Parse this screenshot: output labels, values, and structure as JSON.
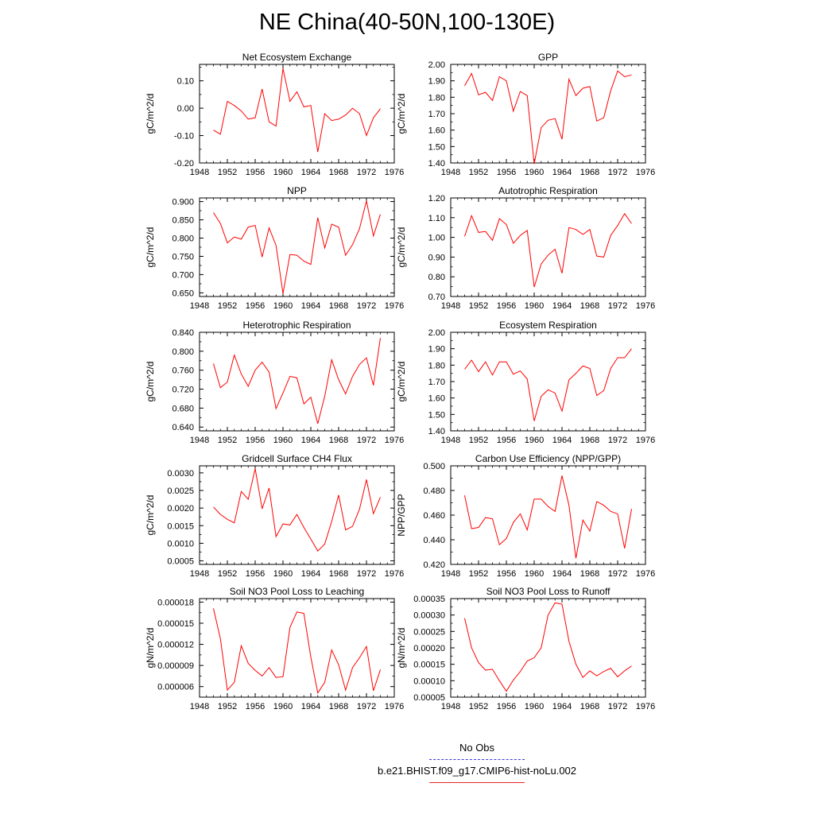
{
  "page_title": "NE China(40-50N,100-130E)",
  "legend": {
    "obs_label": "No Obs",
    "obs_color": "#3a3ad6",
    "case_label": "b.e21.BHIST.f09_g17.CMIP6-hist-noLu.002",
    "case_color": "#e8242a"
  },
  "chart_data": [
    {
      "type": "line",
      "title": "Net Ecosystem Exchange",
      "ylabel": "gC/m^2/d",
      "xlim": [
        1948,
        1976
      ],
      "xticks": [
        "1948",
        "1952",
        "1956",
        "1960",
        "1964",
        "1968",
        "1972",
        "1976"
      ],
      "ylim": [
        -0.2,
        0.16
      ],
      "yticks": [
        "-0.20",
        "-0.10",
        "0.00",
        "0.10"
      ],
      "ytick_values": [
        -0.2,
        -0.1,
        0.0,
        0.1
      ],
      "series": [
        {
          "color": "#ff0000",
          "x": [
            1950,
            1951,
            1952,
            1953,
            1954,
            1955,
            1956,
            1957,
            1958,
            1959,
            1960,
            1961,
            1962,
            1963,
            1964,
            1965,
            1966,
            1967,
            1968,
            1969,
            1970,
            1971,
            1972,
            1973,
            1974
          ],
          "y": [
            -0.08,
            -0.095,
            0.025,
            0.01,
            -0.01,
            -0.04,
            -0.035,
            0.07,
            -0.05,
            -0.065,
            0.145,
            0.025,
            0.06,
            0.005,
            0.01,
            -0.16,
            -0.02,
            -0.045,
            -0.04,
            -0.025,
            0.0,
            -0.02,
            -0.1,
            -0.035,
            -0.002
          ]
        }
      ]
    },
    {
      "type": "line",
      "title": "GPP",
      "ylabel": "gC/m^2/d",
      "xlim": [
        1948,
        1976
      ],
      "xticks": [
        "1948",
        "1952",
        "1956",
        "1960",
        "1964",
        "1968",
        "1972",
        "1976"
      ],
      "ylim": [
        1.4,
        2.0
      ],
      "yticks": [
        "1.40",
        "1.50",
        "1.60",
        "1.70",
        "1.80",
        "1.90",
        "2.00"
      ],
      "ytick_values": [
        1.4,
        1.5,
        1.6,
        1.7,
        1.8,
        1.9,
        2.0
      ],
      "series": [
        {
          "color": "#ff0000",
          "x": [
            1950,
            1951,
            1952,
            1953,
            1954,
            1955,
            1956,
            1957,
            1958,
            1959,
            1960,
            1961,
            1962,
            1963,
            1964,
            1965,
            1966,
            1967,
            1968,
            1969,
            1970,
            1971,
            1972,
            1973,
            1974
          ],
          "y": [
            1.87,
            1.945,
            1.815,
            1.83,
            1.78,
            1.925,
            1.9,
            1.715,
            1.835,
            1.81,
            1.395,
            1.615,
            1.66,
            1.67,
            1.545,
            1.91,
            1.81,
            1.855,
            1.865,
            1.655,
            1.675,
            1.84,
            1.96,
            1.925,
            1.935
          ]
        }
      ]
    },
    {
      "type": "line",
      "title": "NPP",
      "ylabel": "gC/m^2/d",
      "xlim": [
        1948,
        1976
      ],
      "xticks": [
        "1948",
        "1952",
        "1956",
        "1960",
        "1964",
        "1968",
        "1972",
        "1976"
      ],
      "ylim": [
        0.64,
        0.91
      ],
      "yticks": [
        "0.650",
        "0.700",
        "0.750",
        "0.800",
        "0.850",
        "0.900"
      ],
      "ytick_values": [
        0.65,
        0.7,
        0.75,
        0.8,
        0.85,
        0.9
      ],
      "series": [
        {
          "color": "#ff0000",
          "x": [
            1950,
            1951,
            1952,
            1953,
            1954,
            1955,
            1956,
            1957,
            1958,
            1959,
            1960,
            1961,
            1962,
            1963,
            1964,
            1965,
            1966,
            1967,
            1968,
            1969,
            1970,
            1971,
            1972,
            1973,
            1974
          ],
          "y": [
            0.87,
            0.84,
            0.787,
            0.803,
            0.797,
            0.83,
            0.835,
            0.748,
            0.828,
            0.78,
            0.648,
            0.755,
            0.753,
            0.737,
            0.728,
            0.856,
            0.773,
            0.838,
            0.83,
            0.753,
            0.782,
            0.826,
            0.902,
            0.806,
            0.865
          ]
        }
      ]
    },
    {
      "type": "line",
      "title": "Autotrophic Respiration",
      "ylabel": "gC/m^2/d",
      "xlim": [
        1948,
        1976
      ],
      "xticks": [
        "1948",
        "1952",
        "1956",
        "1960",
        "1964",
        "1968",
        "1972",
        "1976"
      ],
      "ylim": [
        0.7,
        1.2
      ],
      "yticks": [
        "0.70",
        "0.80",
        "0.90",
        "1.00",
        "1.10",
        "1.20"
      ],
      "ytick_values": [
        0.7,
        0.8,
        0.9,
        1.0,
        1.1,
        1.2
      ],
      "series": [
        {
          "color": "#ff0000",
          "x": [
            1950,
            1951,
            1952,
            1953,
            1954,
            1955,
            1956,
            1957,
            1958,
            1959,
            1960,
            1961,
            1962,
            1963,
            1964,
            1965,
            1966,
            1967,
            1968,
            1969,
            1970,
            1971,
            1972,
            1973,
            1974
          ],
          "y": [
            1.005,
            1.11,
            1.025,
            1.03,
            0.985,
            1.095,
            1.065,
            0.97,
            1.01,
            1.035,
            0.748,
            0.865,
            0.91,
            0.94,
            0.818,
            1.05,
            1.04,
            1.015,
            1.04,
            0.905,
            0.9,
            1.01,
            1.06,
            1.12,
            1.07
          ]
        }
      ]
    },
    {
      "type": "line",
      "title": "Heterotrophic Respiration",
      "ylabel": "gC/m^2/d",
      "xlim": [
        1948,
        1976
      ],
      "xticks": [
        "1948",
        "1952",
        "1956",
        "1960",
        "1964",
        "1968",
        "1972",
        "1976"
      ],
      "ylim": [
        0.632,
        0.84
      ],
      "yticks": [
        "0.640",
        "0.680",
        "0.720",
        "0.760",
        "0.800",
        "0.840"
      ],
      "ytick_values": [
        0.64,
        0.68,
        0.72,
        0.76,
        0.8,
        0.84
      ],
      "series": [
        {
          "color": "#ff0000",
          "x": [
            1950,
            1951,
            1952,
            1953,
            1954,
            1955,
            1956,
            1957,
            1958,
            1959,
            1960,
            1961,
            1962,
            1963,
            1964,
            1965,
            1966,
            1967,
            1968,
            1969,
            1970,
            1971,
            1972,
            1973,
            1974
          ],
          "y": [
            0.774,
            0.723,
            0.735,
            0.792,
            0.752,
            0.726,
            0.76,
            0.777,
            0.756,
            0.679,
            0.712,
            0.747,
            0.744,
            0.689,
            0.703,
            0.647,
            0.705,
            0.782,
            0.74,
            0.71,
            0.747,
            0.772,
            0.786,
            0.728,
            0.828
          ]
        }
      ]
    },
    {
      "type": "line",
      "title": "Ecosystem Respiration",
      "ylabel": "gC/m^2/d",
      "xlim": [
        1948,
        1976
      ],
      "xticks": [
        "1948",
        "1952",
        "1956",
        "1960",
        "1964",
        "1968",
        "1972",
        "1976"
      ],
      "ylim": [
        1.4,
        2.0
      ],
      "yticks": [
        "1.40",
        "1.50",
        "1.60",
        "1.70",
        "1.80",
        "1.90",
        "2.00"
      ],
      "ytick_values": [
        1.4,
        1.5,
        1.6,
        1.7,
        1.8,
        1.9,
        2.0
      ],
      "series": [
        {
          "color": "#ff0000",
          "x": [
            1950,
            1951,
            1952,
            1953,
            1954,
            1955,
            1956,
            1957,
            1958,
            1959,
            1960,
            1961,
            1962,
            1963,
            1964,
            1965,
            1966,
            1967,
            1968,
            1969,
            1970,
            1971,
            1972,
            1973,
            1974
          ],
          "y": [
            1.775,
            1.83,
            1.76,
            1.82,
            1.74,
            1.82,
            1.82,
            1.745,
            1.765,
            1.715,
            1.46,
            1.61,
            1.65,
            1.63,
            1.52,
            1.71,
            1.75,
            1.795,
            1.78,
            1.615,
            1.645,
            1.78,
            1.845,
            1.845,
            1.9
          ]
        }
      ]
    },
    {
      "type": "line",
      "title": "Gridcell Surface CH4 Flux",
      "ylabel": "gC/m^2/d",
      "xlim": [
        1948,
        1976
      ],
      "xticks": [
        "1948",
        "1952",
        "1956",
        "1960",
        "1964",
        "1968",
        "1972",
        "1976"
      ],
      "ylim": [
        0.0004,
        0.0032
      ],
      "yticks": [
        "0.0005",
        "0.0010",
        "0.0015",
        "0.0020",
        "0.0025",
        "0.0030"
      ],
      "ytick_values": [
        0.0005,
        0.001,
        0.0015,
        0.002,
        0.0025,
        0.003
      ],
      "series": [
        {
          "color": "#ff0000",
          "x": [
            1950,
            1951,
            1952,
            1953,
            1954,
            1955,
            1956,
            1957,
            1958,
            1959,
            1960,
            1961,
            1962,
            1963,
            1964,
            1965,
            1966,
            1967,
            1968,
            1969,
            1970,
            1971,
            1972,
            1973,
            1974
          ],
          "y": [
            0.00203,
            0.00182,
            0.00168,
            0.00158,
            0.00247,
            0.00225,
            0.00312,
            0.00198,
            0.00257,
            0.00119,
            0.00155,
            0.00152,
            0.00182,
            0.00145,
            0.00112,
            0.00078,
            0.00098,
            0.00162,
            0.00237,
            0.00138,
            0.00148,
            0.00197,
            0.00281,
            0.00184,
            0.00231
          ]
        }
      ]
    },
    {
      "type": "line",
      "title": "Carbon Use Efficiency (NPP/GPP)",
      "ylabel": "NPP/GPP",
      "xlim": [
        1948,
        1976
      ],
      "xticks": [
        "1948",
        "1952",
        "1956",
        "1960",
        "1964",
        "1968",
        "1972",
        "1976"
      ],
      "ylim": [
        0.42,
        0.5
      ],
      "yticks": [
        "0.420",
        "0.440",
        "0.460",
        "0.480",
        "0.500"
      ],
      "ytick_values": [
        0.42,
        0.44,
        0.46,
        0.48,
        0.5
      ],
      "series": [
        {
          "color": "#ff0000",
          "x": [
            1950,
            1951,
            1952,
            1953,
            1954,
            1955,
            1956,
            1957,
            1958,
            1959,
            1960,
            1961,
            1962,
            1963,
            1964,
            1965,
            1966,
            1967,
            1968,
            1969,
            1970,
            1971,
            1972,
            1973,
            1974
          ],
          "y": [
            0.476,
            0.449,
            0.45,
            0.458,
            0.457,
            0.436,
            0.441,
            0.454,
            0.461,
            0.448,
            0.473,
            0.473,
            0.467,
            0.463,
            0.492,
            0.468,
            0.425,
            0.456,
            0.447,
            0.471,
            0.468,
            0.463,
            0.461,
            0.433,
            0.465
          ]
        }
      ]
    },
    {
      "type": "line",
      "title": "Soil NO3 Pool Loss to Leaching",
      "ylabel": "gN/m^2/d",
      "xlim": [
        1948,
        1976
      ],
      "xticks": [
        "1948",
        "1952",
        "1956",
        "1960",
        "1964",
        "1968",
        "1972",
        "1976"
      ],
      "ylim": [
        4.5e-06,
        1.85e-05
      ],
      "yticks": [
        "0.000006",
        "0.000009",
        "0.000012",
        "0.000015",
        "0.000018"
      ],
      "ytick_values": [
        6e-06,
        9e-06,
        1.2e-05,
        1.5e-05,
        1.8e-05
      ],
      "series": [
        {
          "color": "#ff0000",
          "x": [
            1950,
            1951,
            1952,
            1953,
            1954,
            1955,
            1956,
            1957,
            1958,
            1959,
            1960,
            1961,
            1962,
            1963,
            1964,
            1965,
            1966,
            1967,
            1968,
            1969,
            1970,
            1971,
            1972,
            1973,
            1974
          ],
          "y": [
            1.71e-05,
            1.28e-05,
            5.5e-06,
            6.6e-06,
            1.18e-05,
            9.3e-06,
            8.3e-06,
            7.5e-06,
            8.7e-06,
            7.3e-06,
            7.4e-06,
            1.44e-05,
            1.66e-05,
            1.64e-05,
            1.02e-05,
            5.1e-06,
            6.6e-06,
            1.12e-05,
            9.1e-06,
            5.5e-06,
            8.7e-06,
            1.01e-05,
            1.17e-05,
            5.4e-06,
            8.4e-06
          ]
        }
      ]
    },
    {
      "type": "line",
      "title": "Soil NO3 Pool Loss to Runoff",
      "ylabel": "gN/m^2/d",
      "xlim": [
        1948,
        1976
      ],
      "xticks": [
        "1948",
        "1952",
        "1956",
        "1960",
        "1964",
        "1968",
        "1972",
        "1976"
      ],
      "ylim": [
        5e-05,
        0.00035
      ],
      "yticks": [
        "0.00005",
        "0.00010",
        "0.00015",
        "0.00020",
        "0.00025",
        "0.00030",
        "0.00035"
      ],
      "ytick_values": [
        5e-05,
        0.0001,
        0.00015,
        0.0002,
        0.00025,
        0.0003,
        0.00035
      ],
      "series": [
        {
          "color": "#ff0000",
          "x": [
            1950,
            1951,
            1952,
            1953,
            1954,
            1955,
            1956,
            1957,
            1958,
            1959,
            1960,
            1961,
            1962,
            1963,
            1964,
            1965,
            1966,
            1967,
            1968,
            1969,
            1970,
            1971,
            1972,
            1973,
            1974
          ],
          "y": [
            0.00029,
            0.0002,
            0.000155,
            0.000132,
            0.000135,
            0.0001,
            6.8e-05,
            0.000102,
            0.000128,
            0.00016,
            0.00017,
            0.0002,
            0.0003,
            0.000337,
            0.000333,
            0.00022,
            0.00015,
            0.00011,
            0.00013,
            0.000115,
            0.000128,
            0.000138,
            0.000112,
            0.00013,
            0.000145
          ]
        }
      ]
    }
  ]
}
